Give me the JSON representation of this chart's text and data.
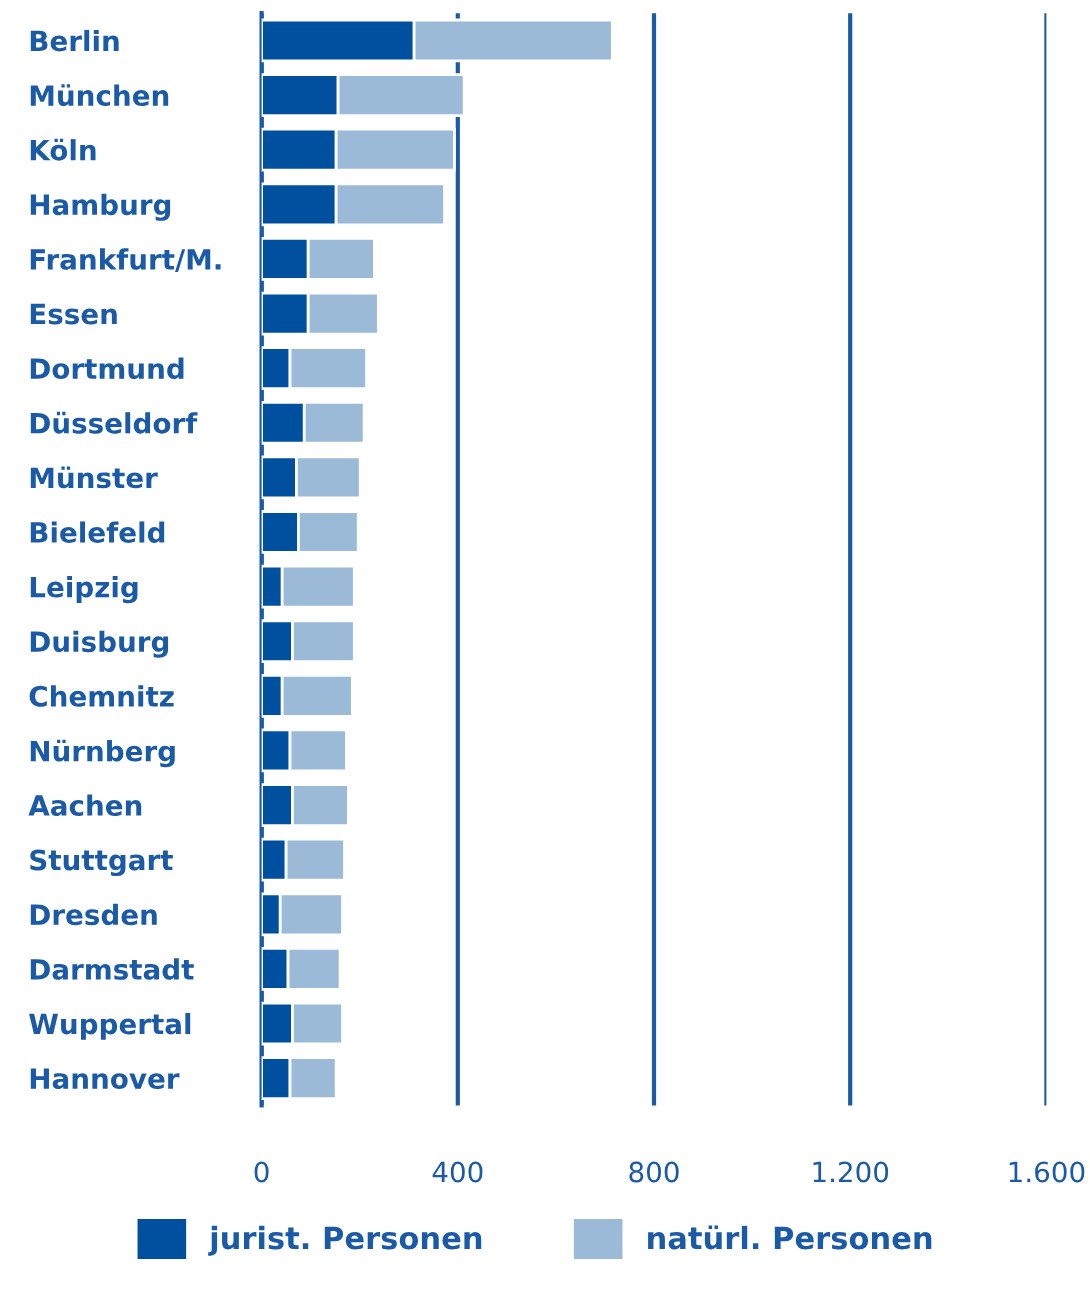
{
  "chart_data": {
    "type": "bar",
    "orientation": "horizontal",
    "stacked": true,
    "categories": [
      "Berlin",
      "München",
      "Köln",
      "Hamburg",
      "Frankfurt/M.",
      "Essen",
      "Dortmund",
      "Düsseldorf",
      "Münster",
      "Bielefeld",
      "Leipzig",
      "Duisburg",
      "Chemnitz",
      "Nürnberg",
      "Aachen",
      "Stuttgart",
      "Dresden",
      "Darmstadt",
      "Wuppertal",
      "Hannover"
    ],
    "series": [
      {
        "name": "jurist. Personen",
        "color": "#0050a0",
        "values": [
          311,
          156,
          152,
          152,
          95,
          95,
          58,
          87,
          71,
          75,
          42,
          63,
          42,
          58,
          63,
          50,
          38,
          54,
          63,
          58
        ]
      },
      {
        "name": "natürl. Personen",
        "color": "#9bbad8",
        "values": [
          404,
          257,
          241,
          221,
          135,
          143,
          156,
          122,
          130,
          122,
          147,
          126,
          143,
          115,
          114,
          119,
          127,
          106,
          102,
          94
        ]
      }
    ],
    "xlim": [
      0,
      1600
    ],
    "xticks": [
      0,
      400,
      800,
      {
        "value": 1200,
        "label": "1.200"
      },
      {
        "value": 1600,
        "label": "1.600"
      }
    ],
    "grid": "x",
    "legend": "bottom"
  }
}
